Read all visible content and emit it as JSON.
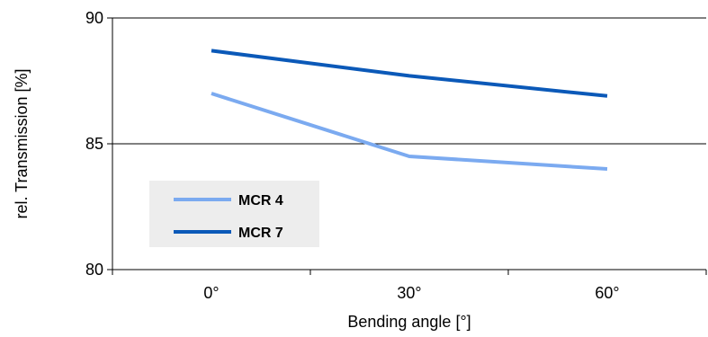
{
  "chart_data": {
    "type": "line",
    "title": "",
    "xlabel": "Bending angle [°]",
    "ylabel": "rel. Transmission [%]",
    "categories": [
      "0°",
      "30°",
      "60°"
    ],
    "ylim": [
      80,
      90
    ],
    "yticks": [
      80,
      85,
      90
    ],
    "grid": "horizontal major lines",
    "legend_position": "bottom-left",
    "series": [
      {
        "name": "MCR 4",
        "color": "#7BAAF0",
        "values": [
          87.0,
          84.5,
          84.0
        ]
      },
      {
        "name": "MCR 7",
        "color": "#0B59B8",
        "values": [
          88.7,
          87.7,
          86.9
        ]
      }
    ]
  }
}
